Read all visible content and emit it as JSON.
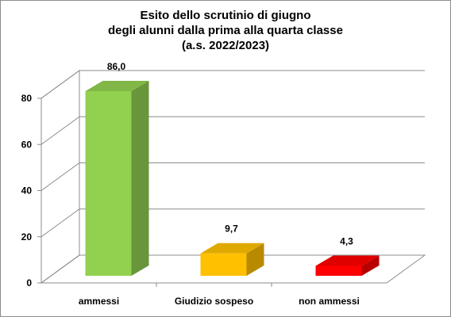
{
  "chart_data": {
    "type": "bar",
    "title_lines": [
      "Esito dello scrutinio di giugno",
      "degli alunni dalla prima alla quarta classe",
      "(a.s. 2022/2023)"
    ],
    "categories": [
      "ammessi",
      "Giudizio sospeso",
      "non ammessi"
    ],
    "values": [
      86.0,
      9.7,
      4.3
    ],
    "value_labels": [
      "86,0",
      "9,7",
      "4,3"
    ],
    "colors": [
      "#92d050",
      "#ffc000",
      "#ff0000"
    ],
    "ylim": [
      0,
      80
    ],
    "yticks": [
      "0",
      "20",
      "40",
      "60",
      "80"
    ],
    "grid": true,
    "legend": "none"
  }
}
